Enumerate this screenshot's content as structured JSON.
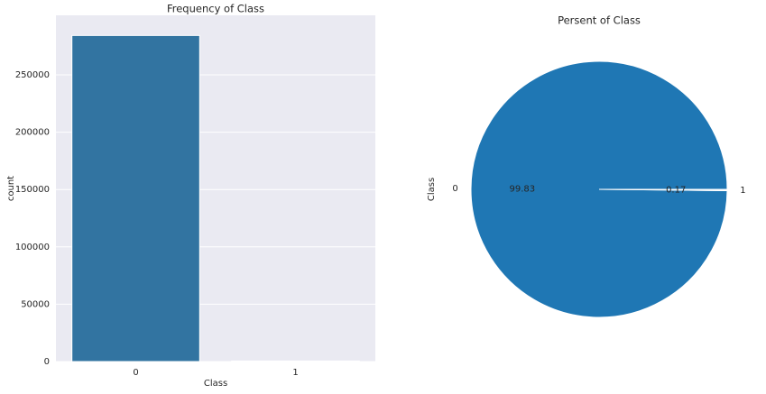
{
  "chart_data": [
    {
      "type": "bar",
      "title": "Frequency of Class",
      "xlabel": "Class",
      "ylabel": "count",
      "categories": [
        "0",
        "1"
      ],
      "values": [
        284315,
        492
      ],
      "colors": [
        "#3274a1",
        "#e1812c"
      ],
      "ylim": [
        0,
        301900
      ],
      "yticks": [
        0,
        50000,
        100000,
        150000,
        200000,
        250000
      ],
      "grid": true
    },
    {
      "type": "pie",
      "title": "Persent of Class",
      "ylabel": "Class",
      "categories": [
        "0",
        "1"
      ],
      "values": [
        99.83,
        0.17
      ],
      "colors": [
        "#1f77b4",
        "#ffffff"
      ]
    }
  ]
}
